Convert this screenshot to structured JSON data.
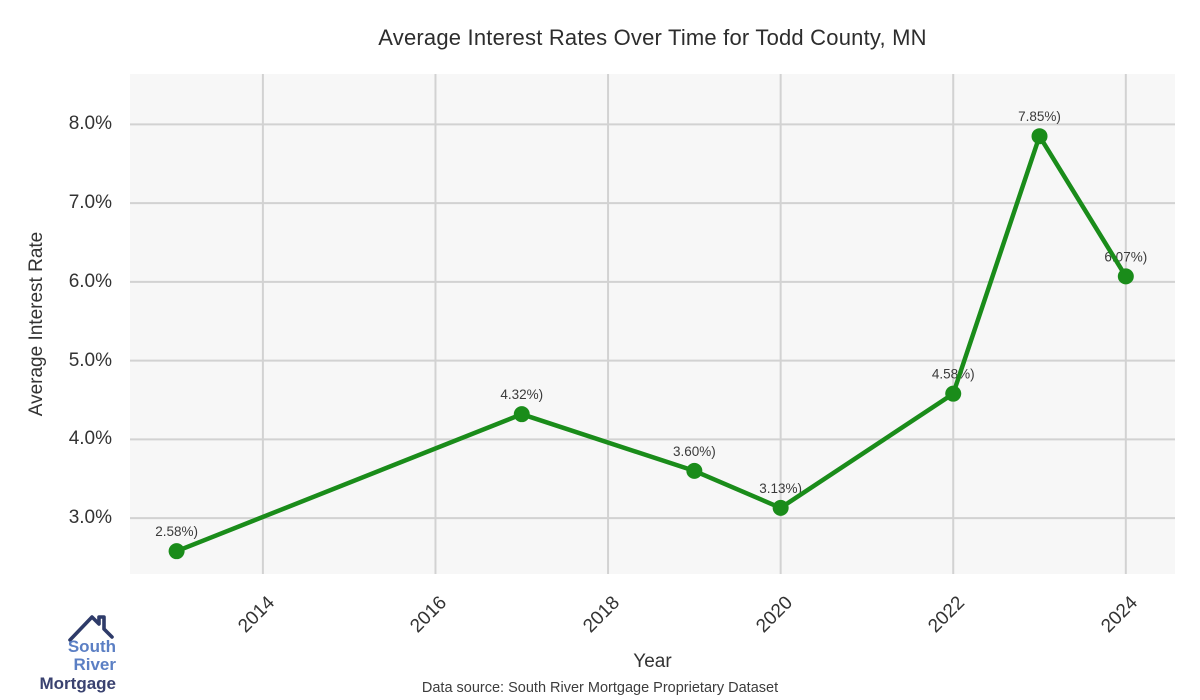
{
  "chart_data": {
    "type": "line",
    "title": "Average Interest Rates Over Time for Todd County, MN",
    "xlabel": "Year",
    "ylabel": "Average Interest Rate",
    "series": [
      {
        "name": "Average Interest Rate",
        "x": [
          2013,
          2017,
          2019,
          2020,
          2022,
          2023,
          2024
        ],
        "y": [
          2.58,
          4.32,
          3.6,
          3.13,
          4.58,
          7.85,
          6.07
        ],
        "point_labels": [
          "2.58%)",
          "4.32%)",
          "3.60%)",
          "3.13%)",
          "4.58%)",
          "7.85%)",
          "6.07%)"
        ],
        "color": "#1a8c1a"
      }
    ],
    "x_ticks": [
      2014,
      2016,
      2018,
      2020,
      2022,
      2024
    ],
    "x_tick_labels": [
      "2014",
      "2016",
      "2018",
      "2020",
      "2022",
      "2024"
    ],
    "y_ticks": [
      3,
      4,
      5,
      6,
      7,
      8
    ],
    "y_tick_labels": [
      "3.0%",
      "4.0%",
      "5.0%",
      "6.0%",
      "7.0%",
      "8.0%"
    ],
    "xlim": [
      2012.46,
      2024.57
    ],
    "ylim": [
      2.29,
      8.64
    ],
    "grid": true,
    "legend": "none",
    "panel_bg": "#f7f7f7",
    "grid_color": "#d2d2d2",
    "line_width": 4.5,
    "marker_radius": 8
  },
  "footer": {
    "source_note": "Data source: South River Mortgage Proprietary Dataset"
  },
  "logo": {
    "line1": "South River",
    "line2": "Mortgage",
    "line1_color": "#5b7fc4",
    "line2_color": "#3a4270",
    "icon_color": "#2e3b69"
  }
}
